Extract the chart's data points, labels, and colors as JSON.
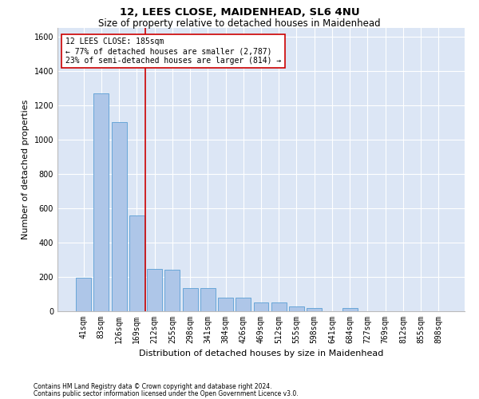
{
  "title1": "12, LEES CLOSE, MAIDENHEAD, SL6 4NU",
  "title2": "Size of property relative to detached houses in Maidenhead",
  "xlabel": "Distribution of detached houses by size in Maidenhead",
  "ylabel": "Number of detached properties",
  "footnote1": "Contains HM Land Registry data © Crown copyright and database right 2024.",
  "footnote2": "Contains public sector information licensed under the Open Government Licence v3.0.",
  "annotation_line1": "12 LEES CLOSE: 185sqm",
  "annotation_line2": "← 77% of detached houses are smaller (2,787)",
  "annotation_line3": "23% of semi-detached houses are larger (814) →",
  "bar_color": "#aec6e8",
  "bar_edge_color": "#5a9fd4",
  "vline_color": "#cc0000",
  "annotation_box_color": "#cc0000",
  "background_color": "#dce6f5",
  "categories": [
    "41sqm",
    "83sqm",
    "126sqm",
    "169sqm",
    "212sqm",
    "255sqm",
    "298sqm",
    "341sqm",
    "384sqm",
    "426sqm",
    "469sqm",
    "512sqm",
    "555sqm",
    "598sqm",
    "641sqm",
    "684sqm",
    "727sqm",
    "769sqm",
    "812sqm",
    "855sqm",
    "898sqm"
  ],
  "values": [
    195,
    1270,
    1100,
    560,
    245,
    240,
    135,
    135,
    80,
    80,
    50,
    50,
    30,
    20,
    0,
    20,
    0,
    0,
    0,
    0,
    0
  ],
  "ylim": [
    0,
    1650
  ],
  "yticks": [
    0,
    200,
    400,
    600,
    800,
    1000,
    1200,
    1400,
    1600
  ],
  "vline_x_idx": 3.5,
  "title_fontsize": 9.5,
  "subtitle_fontsize": 8.5,
  "tick_fontsize": 7,
  "label_fontsize": 8,
  "footnote_fontsize": 5.5,
  "annotation_fontsize": 7
}
